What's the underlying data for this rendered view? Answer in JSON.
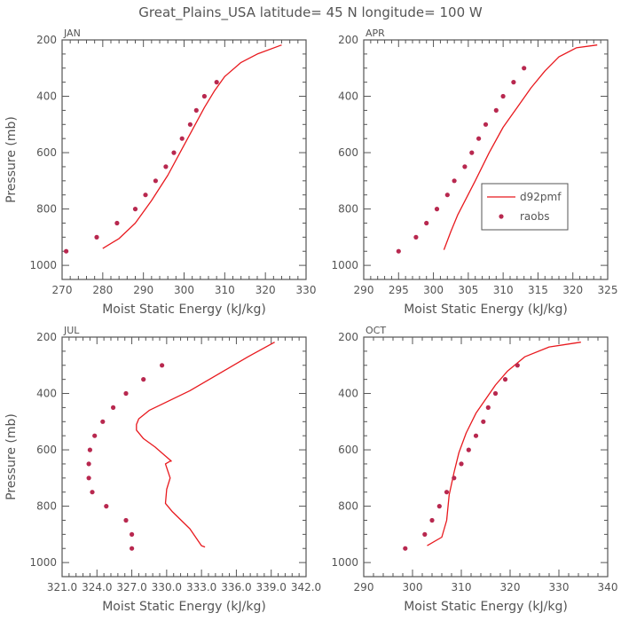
{
  "title": "Great_Plains_USA   latitude= 45 N longitude= 100 W",
  "colors": {
    "model": "#e8191e",
    "obs": "#b8284f",
    "frame": "#555555"
  },
  "legend": {
    "model": "d92pmf",
    "obs": "raobs"
  },
  "chart_data": [
    {
      "type": "line",
      "label": "JAN",
      "xlabel": "Moist Static Energy (kJ/kg)",
      "ylabel": "Pressure (mb)",
      "xlim": [
        270,
        330
      ],
      "ylim": [
        1050,
        200
      ],
      "xticks": [
        "270",
        "280",
        "290",
        "300",
        "310",
        "320",
        "330"
      ],
      "yticks": [
        "200",
        "400",
        "600",
        "800",
        "1000"
      ],
      "series": [
        {
          "name": "d92pmf",
          "kind": "line",
          "x": [
            280,
            284,
            288,
            292,
            296,
            299,
            302,
            305,
            307.5,
            310,
            314,
            318,
            324
          ],
          "y": [
            940,
            905,
            850,
            770,
            680,
            600,
            520,
            440,
            380,
            330,
            280,
            250,
            218
          ]
        },
        {
          "name": "raobs",
          "kind": "points",
          "x": [
            271,
            278.5,
            283.5,
            288,
            290.5,
            293,
            295.5,
            297.5,
            299.5,
            301.5,
            303,
            305,
            308
          ],
          "y": [
            950,
            900,
            850,
            800,
            750,
            700,
            650,
            600,
            550,
            500,
            450,
            400,
            350
          ]
        }
      ]
    },
    {
      "type": "line",
      "label": "APR",
      "xlabel": "Moist Static Energy (kJ/kg)",
      "ylabel": "",
      "xlim": [
        290,
        325
      ],
      "ylim": [
        1050,
        200
      ],
      "xticks": [
        "290",
        "295",
        "300",
        "305",
        "310",
        "315",
        "320",
        "325"
      ],
      "yticks": [
        "200",
        "400",
        "600",
        "800",
        "1000"
      ],
      "series": [
        {
          "name": "d92pmf",
          "kind": "line",
          "x": [
            301.5,
            302.5,
            303.5,
            306,
            308,
            310,
            312,
            314,
            316,
            318,
            320.5,
            323.5
          ],
          "y": [
            945,
            880,
            820,
            700,
            600,
            510,
            440,
            370,
            310,
            260,
            228,
            218
          ]
        },
        {
          "name": "raobs",
          "kind": "points",
          "x": [
            295,
            297.5,
            299,
            300.5,
            302,
            303,
            304.5,
            305.5,
            306.5,
            307.5,
            309,
            310,
            311.5,
            313
          ],
          "y": [
            950,
            900,
            850,
            800,
            750,
            700,
            650,
            600,
            550,
            500,
            450,
            400,
            350,
            300
          ]
        }
      ]
    },
    {
      "type": "line",
      "label": "JUL",
      "xlabel": "Moist Static Energy (kJ/kg)",
      "ylabel": "Pressure (mb)",
      "xlim": [
        321.0,
        342.0
      ],
      "ylim": [
        1050,
        200
      ],
      "xticks": [
        "321.0",
        "324.0",
        "327.0",
        "330.0",
        "333.0",
        "336.0",
        "339.0",
        "342.0"
      ],
      "yticks": [
        "200",
        "400",
        "600",
        "800",
        "1000"
      ],
      "series": [
        {
          "name": "d92pmf",
          "kind": "line",
          "x": [
            333.3,
            333.0,
            332.0,
            330.5,
            329.9,
            330.0,
            330.3,
            329.9,
            330.3,
            330.4,
            329.0,
            328.0,
            327.4,
            327.4,
            327.6,
            328.5,
            330.0,
            332.0,
            334.5,
            337.0,
            339.3
          ],
          "y": [
            945,
            940,
            880,
            820,
            790,
            740,
            700,
            650,
            640,
            640,
            590,
            560,
            530,
            510,
            490,
            460,
            430,
            390,
            330,
            270,
            218
          ]
        },
        {
          "name": "raobs",
          "kind": "points",
          "x": [
            327.0,
            327.0,
            326.5,
            324.8,
            323.6,
            323.3,
            323.3,
            323.4,
            323.8,
            324.5,
            325.4,
            326.5,
            328.0,
            329.6
          ],
          "y": [
            950,
            900,
            850,
            800,
            750,
            700,
            650,
            600,
            550,
            500,
            450,
            400,
            350,
            300
          ]
        }
      ]
    },
    {
      "type": "line",
      "label": "OCT",
      "xlabel": "Moist Static Energy (kJ/kg)",
      "ylabel": "",
      "xlim": [
        290,
        340
      ],
      "ylim": [
        1050,
        200
      ],
      "xticks": [
        "290",
        "300",
        "310",
        "320",
        "330",
        "340"
      ],
      "yticks": [
        "200",
        "400",
        "600",
        "800",
        "1000"
      ],
      "series": [
        {
          "name": "d92pmf",
          "kind": "line",
          "x": [
            303,
            306,
            307,
            307.5,
            308.5,
            309.5,
            311,
            313,
            315,
            317,
            319.5,
            323,
            328,
            334.5
          ],
          "y": [
            940,
            910,
            850,
            760,
            680,
            610,
            540,
            470,
            420,
            370,
            320,
            270,
            235,
            218
          ]
        },
        {
          "name": "raobs",
          "kind": "points",
          "x": [
            298.5,
            302.5,
            304,
            305.5,
            307,
            308.5,
            310,
            311.5,
            313,
            314.5,
            315.5,
            317,
            319,
            321.5
          ],
          "y": [
            950,
            900,
            850,
            800,
            750,
            700,
            650,
            600,
            550,
            500,
            450,
            400,
            350,
            300
          ]
        }
      ]
    }
  ]
}
